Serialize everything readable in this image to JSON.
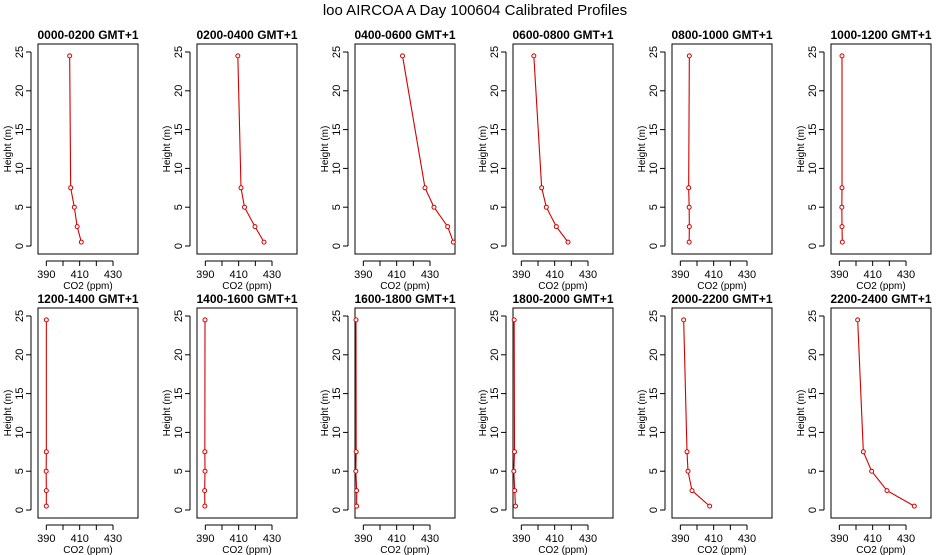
{
  "figure": {
    "title": "loo AIRCOA A  Day 100604  Calibrated Profiles"
  },
  "chart_data": [
    {
      "type": "line",
      "title": "0000-0200 GMT+1",
      "xlabel": "CO2 (ppm)",
      "ylabel": "Height (m)",
      "xlim": [
        385,
        445
      ],
      "ylim": [
        0,
        25
      ],
      "x_ticks": [
        390,
        410,
        430
      ],
      "y_ticks": [
        0,
        5,
        10,
        15,
        20,
        25
      ],
      "series": [
        {
          "x": [
            411.0,
            408.5,
            406.8,
            404.6,
            404.0
          ],
          "y": [
            0.5,
            2.5,
            5.0,
            7.5,
            24.5
          ]
        }
      ]
    },
    {
      "type": "line",
      "title": "0200-0400 GMT+1",
      "xlabel": "CO2 (ppm)",
      "ylabel": "Height (m)",
      "xlim": [
        385,
        445
      ],
      "ylim": [
        0,
        25
      ],
      "x_ticks": [
        390,
        410,
        430
      ],
      "y_ticks": [
        0,
        5,
        10,
        15,
        20,
        25
      ],
      "series": [
        {
          "x": [
            425.2,
            419.8,
            413.5,
            411.4,
            409.5
          ],
          "y": [
            0.5,
            2.5,
            5.0,
            7.5,
            24.5
          ]
        }
      ]
    },
    {
      "type": "line",
      "title": "0400-0600 GMT+1",
      "xlabel": "CO2 (ppm)",
      "ylabel": "Height (m)",
      "xlim": [
        385,
        445
      ],
      "ylim": [
        0,
        25
      ],
      "x_ticks": [
        390,
        410,
        430
      ],
      "y_ticks": [
        0,
        5,
        10,
        15,
        20,
        25
      ],
      "series": [
        {
          "x": [
            444.0,
            440.6,
            432.4,
            427.0,
            413.5
          ],
          "y": [
            0.5,
            2.5,
            5.0,
            7.5,
            24.5
          ]
        }
      ]
    },
    {
      "type": "line",
      "title": "0600-0800 GMT+1",
      "xlabel": "CO2 (ppm)",
      "ylabel": "Height (m)",
      "xlim": [
        385,
        445
      ],
      "ylim": [
        0,
        25
      ],
      "x_ticks": [
        390,
        410,
        430
      ],
      "y_ticks": [
        0,
        5,
        10,
        15,
        20,
        25
      ],
      "series": [
        {
          "x": [
            418.0,
            411.0,
            405.0,
            402.2,
            397.5
          ],
          "y": [
            0.5,
            2.5,
            5.0,
            7.5,
            24.5
          ]
        }
      ]
    },
    {
      "type": "line",
      "title": "0800-1000 GMT+1",
      "xlabel": "CO2 (ppm)",
      "ylabel": "Height (m)",
      "xlim": [
        385,
        445
      ],
      "ylim": [
        0,
        25
      ],
      "x_ticks": [
        390,
        410,
        430
      ],
      "y_ticks": [
        0,
        5,
        10,
        15,
        20,
        25
      ],
      "series": [
        {
          "x": [
            395.3,
            395.4,
            395.3,
            395.0,
            395.4
          ],
          "y": [
            0.5,
            2.5,
            5.0,
            7.5,
            24.5
          ]
        }
      ]
    },
    {
      "type": "line",
      "title": "1000-1200 GMT+1",
      "xlabel": "CO2 (ppm)",
      "ylabel": "Height (m)",
      "xlim": [
        385,
        445
      ],
      "ylim": [
        0,
        25
      ],
      "x_ticks": [
        390,
        410,
        430
      ],
      "y_ticks": [
        0,
        5,
        10,
        15,
        20,
        25
      ],
      "series": [
        {
          "x": [
            391.8,
            391.6,
            391.5,
            391.6,
            391.6
          ],
          "y": [
            0.5,
            2.5,
            5.0,
            7.5,
            24.5
          ]
        }
      ]
    },
    {
      "type": "line",
      "title": "1200-1400 GMT+1",
      "xlabel": "CO2 (ppm)",
      "ylabel": "Height (m)",
      "xlim": [
        385,
        445
      ],
      "ylim": [
        0,
        25
      ],
      "x_ticks": [
        390,
        410,
        430
      ],
      "y_ticks": [
        0,
        5,
        10,
        15,
        20,
        25
      ],
      "series": [
        {
          "x": [
            390.0,
            390.0,
            389.9,
            390.0,
            390.0
          ],
          "y": [
            0.5,
            2.5,
            5.0,
            7.5,
            24.5
          ]
        }
      ]
    },
    {
      "type": "line",
      "title": "1400-1600 GMT+1",
      "xlabel": "CO2 (ppm)",
      "ylabel": "Height (m)",
      "xlim": [
        385,
        445
      ],
      "ylim": [
        0,
        25
      ],
      "x_ticks": [
        390,
        410,
        430
      ],
      "y_ticks": [
        0,
        5,
        10,
        15,
        20,
        25
      ],
      "series": [
        {
          "x": [
            389.7,
            389.6,
            389.8,
            389.7,
            389.8
          ],
          "y": [
            0.5,
            2.5,
            5.0,
            7.5,
            24.5
          ]
        }
      ]
    },
    {
      "type": "line",
      "title": "1600-1800 GMT+1",
      "xlabel": "CO2 (ppm)",
      "ylabel": "Height (m)",
      "xlim": [
        385,
        445
      ],
      "ylim": [
        0,
        25
      ],
      "x_ticks": [
        390,
        410,
        430
      ],
      "y_ticks": [
        0,
        5,
        10,
        15,
        20,
        25
      ],
      "series": [
        {
          "x": [
            386.0,
            386.0,
            385.5,
            385.7,
            385.6
          ],
          "y": [
            0.5,
            2.5,
            5.0,
            7.5,
            24.5
          ]
        }
      ]
    },
    {
      "type": "line",
      "title": "1800-2000 GMT+1",
      "xlabel": "CO2 (ppm)",
      "ylabel": "Height (m)",
      "xlim": [
        385,
        445
      ],
      "ylim": [
        0,
        25
      ],
      "x_ticks": [
        390,
        410,
        430
      ],
      "y_ticks": [
        0,
        5,
        10,
        15,
        20,
        25
      ],
      "series": [
        {
          "x": [
            386.5,
            386.0,
            385.5,
            385.9,
            385.7
          ],
          "y": [
            0.5,
            2.5,
            5.0,
            7.5,
            24.5
          ]
        }
      ]
    },
    {
      "type": "line",
      "title": "2000-2200 GMT+1",
      "xlabel": "CO2 (ppm)",
      "ylabel": "Height (m)",
      "xlim": [
        385,
        445
      ],
      "ylim": [
        0,
        25
      ],
      "x_ticks": [
        390,
        410,
        430
      ],
      "y_ticks": [
        0,
        5,
        10,
        15,
        20,
        25
      ],
      "series": [
        {
          "x": [
            407.6,
            397.0,
            394.6,
            394.0,
            392.0
          ],
          "y": [
            0.5,
            2.5,
            5.0,
            7.5,
            24.5
          ]
        }
      ]
    },
    {
      "type": "line",
      "title": "2200-2400 GMT+1",
      "xlabel": "CO2 (ppm)",
      "ylabel": "Height (m)",
      "xlim": [
        385,
        445
      ],
      "ylim": [
        0,
        25
      ],
      "x_ticks": [
        390,
        410,
        430
      ],
      "y_ticks": [
        0,
        5,
        10,
        15,
        20,
        25
      ],
      "series": [
        {
          "x": [
            435.0,
            418.6,
            409.4,
            404.4,
            401.0
          ],
          "y": [
            0.5,
            2.5,
            5.0,
            7.5,
            24.5
          ]
        }
      ]
    }
  ]
}
